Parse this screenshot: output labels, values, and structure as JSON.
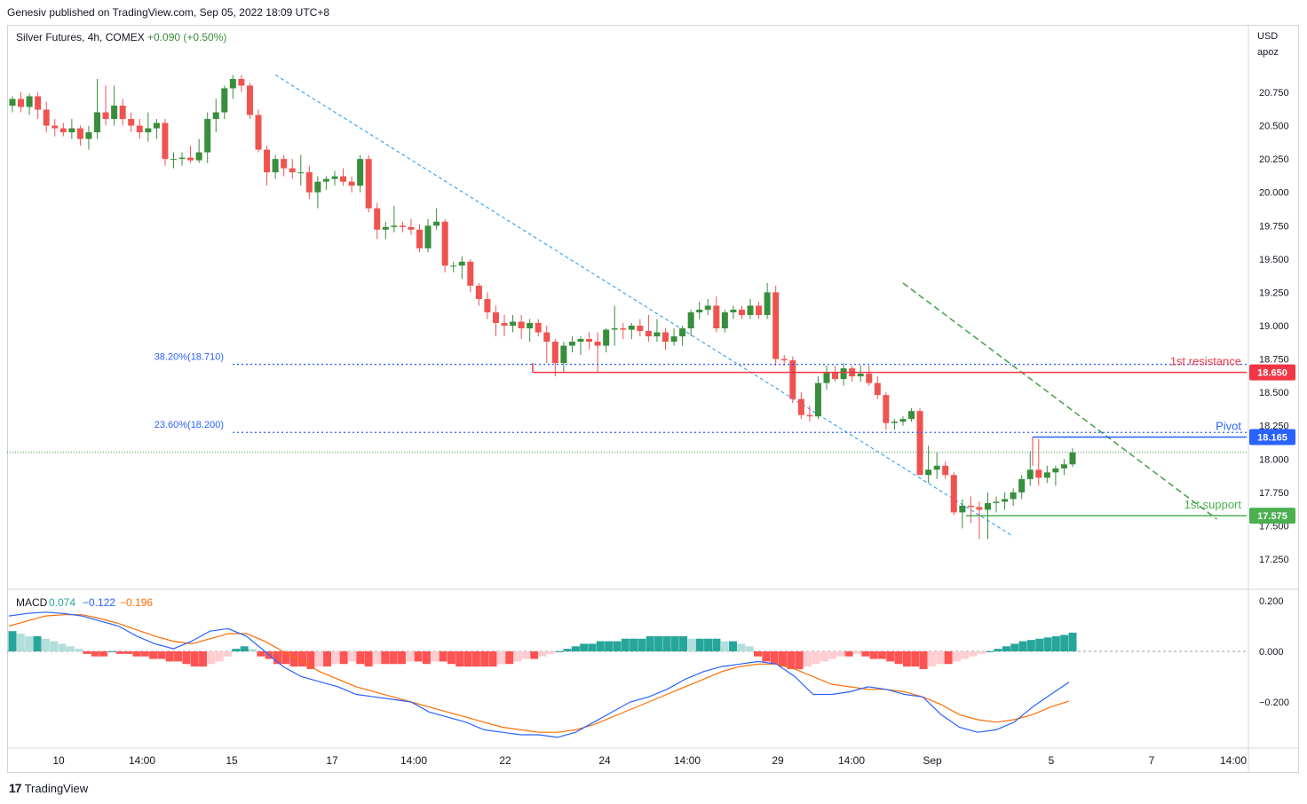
{
  "header": {
    "published": "Genesiv published on TradingView.com, Sep 05, 2022 18:09 UTC+8"
  },
  "legend": {
    "symbol": "Silver Futures, 4h, COMEX",
    "change": "+0.090 (+0.50%)"
  },
  "axis": {
    "currency": "USD",
    "unit": "apoz"
  },
  "footer": {
    "brand": "TradingView"
  },
  "colors": {
    "up": "#26a69a",
    "down": "#ef5350",
    "candle_up": "#388e3c",
    "candle_down": "#ef5350",
    "fib": "#2962ff",
    "resistance": "#f23645",
    "support": "#4caf50",
    "pivot": "#2962ff",
    "macd": "#2962ff",
    "signal": "#ff6d00"
  },
  "chart_data": [
    {
      "type": "candlestick",
      "title": "Silver Futures, 4h, COMEX",
      "ylim": [
        17.1,
        21.0
      ],
      "y_ticks": [
        "20.750",
        "20.500",
        "20.250",
        "20.000",
        "19.750",
        "19.500",
        "19.250",
        "19.000",
        "18.750",
        "18.500",
        "18.250",
        "18.000",
        "17.750",
        "17.500",
        "17.250"
      ],
      "x_ticks": [
        "10",
        "14:00",
        "15",
        "17",
        "14:00",
        "22",
        "24",
        "14:00",
        "29",
        "14:00",
        "Sep",
        "5",
        "7",
        "14:00"
      ],
      "candles_ohlc": [
        [
          20.65,
          20.72,
          20.6,
          20.7
        ],
        [
          20.7,
          20.75,
          20.6,
          20.64
        ],
        [
          20.64,
          20.74,
          20.58,
          20.72
        ],
        [
          20.72,
          20.75,
          20.55,
          20.62
        ],
        [
          20.62,
          20.68,
          20.45,
          20.5
        ],
        [
          20.5,
          20.55,
          20.42,
          20.48
        ],
        [
          20.48,
          20.52,
          20.42,
          20.45
        ],
        [
          20.45,
          20.55,
          20.4,
          20.48
        ],
        [
          20.48,
          20.5,
          20.35,
          20.4
        ],
        [
          20.4,
          20.5,
          20.32,
          20.45
        ],
        [
          20.45,
          20.85,
          20.4,
          20.6
        ],
        [
          20.6,
          20.8,
          20.5,
          20.55
        ],
        [
          20.55,
          20.8,
          20.5,
          20.65
        ],
        [
          20.65,
          20.7,
          20.5,
          20.55
        ],
        [
          20.55,
          20.6,
          20.45,
          20.5
        ],
        [
          20.5,
          20.55,
          20.4,
          20.45
        ],
        [
          20.45,
          20.6,
          20.38,
          20.48
        ],
        [
          20.48,
          20.55,
          20.4,
          20.52
        ],
        [
          20.52,
          20.55,
          20.2,
          20.25
        ],
        [
          20.25,
          20.3,
          20.18,
          20.25
        ],
        [
          20.25,
          20.3,
          20.2,
          20.26
        ],
        [
          20.26,
          20.35,
          20.22,
          20.24
        ],
        [
          20.24,
          20.4,
          20.22,
          20.3
        ],
        [
          20.3,
          20.6,
          20.22,
          20.55
        ],
        [
          20.55,
          20.7,
          20.45,
          20.6
        ],
        [
          20.6,
          20.8,
          20.55,
          20.78
        ],
        [
          20.78,
          20.88,
          20.7,
          20.85
        ],
        [
          20.85,
          20.88,
          20.75,
          20.8
        ],
        [
          20.8,
          20.82,
          20.55,
          20.58
        ],
        [
          20.58,
          20.62,
          20.3,
          20.32
        ],
        [
          20.32,
          20.35,
          20.05,
          20.15
        ],
        [
          20.15,
          20.28,
          20.1,
          20.25
        ],
        [
          20.25,
          20.28,
          20.12,
          20.18
        ],
        [
          20.18,
          20.25,
          20.1,
          20.15
        ],
        [
          20.15,
          20.28,
          20.05,
          20.15
        ],
        [
          20.15,
          20.2,
          19.95,
          20.0
        ],
        [
          20.0,
          20.12,
          19.88,
          20.08
        ],
        [
          20.08,
          20.12,
          20.02,
          20.1
        ],
        [
          20.1,
          20.16,
          20.05,
          20.12
        ],
        [
          20.12,
          20.18,
          20.05,
          20.08
        ],
        [
          20.08,
          20.12,
          20.0,
          20.05
        ],
        [
          20.05,
          20.28,
          20.0,
          20.25
        ],
        [
          20.25,
          20.28,
          19.85,
          19.88
        ],
        [
          19.88,
          19.92,
          19.65,
          19.72
        ],
        [
          19.72,
          19.78,
          19.65,
          19.74
        ],
        [
          19.74,
          19.9,
          19.7,
          19.75
        ],
        [
          19.75,
          19.78,
          19.7,
          19.74
        ],
        [
          19.74,
          19.8,
          19.68,
          19.72
        ],
        [
          19.72,
          19.76,
          19.55,
          19.58
        ],
        [
          19.58,
          19.8,
          19.55,
          19.75
        ],
        [
          19.75,
          19.88,
          19.72,
          19.78
        ],
        [
          19.78,
          19.8,
          19.4,
          19.45
        ],
        [
          19.45,
          19.48,
          19.4,
          19.45
        ],
        [
          19.45,
          19.52,
          19.35,
          19.48
        ],
        [
          19.48,
          19.5,
          19.25,
          19.3
        ],
        [
          19.3,
          19.32,
          19.15,
          19.2
        ],
        [
          19.2,
          19.25,
          19.05,
          19.1
        ],
        [
          19.1,
          19.15,
          18.92,
          19.02
        ],
        [
          19.02,
          19.08,
          18.92,
          19.0
        ],
        [
          19.0,
          19.08,
          18.95,
          19.03
        ],
        [
          19.03,
          19.08,
          18.9,
          18.98
        ],
        [
          18.98,
          19.05,
          18.88,
          19.02
        ],
        [
          19.02,
          19.05,
          18.92,
          18.95
        ],
        [
          18.95,
          19.0,
          18.72,
          18.88
        ],
        [
          18.88,
          18.9,
          18.62,
          18.72
        ],
        [
          18.72,
          18.88,
          18.65,
          18.85
        ],
        [
          18.85,
          18.92,
          18.8,
          18.88
        ],
        [
          18.88,
          18.92,
          18.78,
          18.9
        ],
        [
          18.9,
          18.95,
          18.82,
          18.88
        ],
        [
          18.88,
          18.95,
          18.65,
          18.85
        ],
        [
          18.85,
          18.98,
          18.8,
          18.97
        ],
        [
          18.97,
          19.15,
          18.85,
          18.98
        ],
        [
          18.98,
          19.02,
          18.9,
          18.97
        ],
        [
          18.97,
          19.02,
          18.9,
          19.0
        ],
        [
          19.0,
          19.05,
          18.92,
          18.96
        ],
        [
          18.96,
          19.08,
          18.88,
          18.92
        ],
        [
          18.92,
          19.05,
          18.88,
          18.95
        ],
        [
          18.95,
          18.98,
          18.82,
          18.88
        ],
        [
          18.88,
          18.98,
          18.85,
          18.92
        ],
        [
          18.92,
          19.0,
          18.85,
          18.98
        ],
        [
          18.98,
          19.12,
          18.92,
          19.1
        ],
        [
          19.1,
          19.18,
          19.05,
          19.12
        ],
        [
          19.12,
          19.2,
          19.08,
          19.15
        ],
        [
          19.15,
          19.22,
          18.95,
          18.98
        ],
        [
          18.98,
          19.12,
          18.95,
          19.1
        ],
        [
          19.1,
          19.15,
          19.05,
          19.12
        ],
        [
          19.12,
          19.15,
          19.05,
          19.08
        ],
        [
          19.08,
          19.2,
          19.05,
          19.15
        ],
        [
          19.15,
          19.18,
          19.05,
          19.08
        ],
        [
          19.08,
          19.32,
          19.05,
          19.25
        ],
        [
          19.25,
          19.3,
          18.7,
          18.75
        ],
        [
          18.75,
          18.78,
          18.7,
          18.74
        ],
        [
          18.74,
          18.77,
          18.42,
          18.45
        ],
        [
          18.45,
          18.5,
          18.3,
          18.33
        ],
        [
          18.33,
          18.4,
          18.28,
          18.32
        ],
        [
          18.32,
          18.62,
          18.3,
          18.57
        ],
        [
          18.57,
          18.7,
          18.52,
          18.65
        ],
        [
          18.65,
          18.7,
          18.58,
          18.6
        ],
        [
          18.6,
          18.72,
          18.55,
          18.68
        ],
        [
          18.68,
          18.7,
          18.58,
          18.62
        ],
        [
          18.62,
          18.7,
          18.58,
          18.64
        ],
        [
          18.64,
          18.7,
          18.55,
          18.57
        ],
        [
          18.57,
          18.62,
          18.45,
          18.48
        ],
        [
          18.48,
          18.5,
          18.22,
          18.27
        ],
        [
          18.27,
          18.3,
          18.22,
          18.28
        ],
        [
          18.28,
          18.32,
          18.25,
          18.3
        ],
        [
          18.3,
          18.38,
          18.28,
          18.36
        ],
        [
          18.36,
          18.38,
          17.9,
          17.88
        ],
        [
          17.88,
          18.1,
          17.82,
          17.92
        ],
        [
          17.92,
          18.05,
          17.85,
          17.95
        ],
        [
          17.95,
          17.98,
          17.85,
          17.88
        ],
        [
          17.88,
          17.9,
          17.58,
          17.6
        ],
        [
          17.6,
          17.7,
          17.48,
          17.65
        ],
        [
          17.65,
          17.72,
          17.52,
          17.64
        ],
        [
          17.64,
          17.68,
          17.4,
          17.62
        ],
        [
          17.62,
          17.75,
          17.4,
          17.67
        ],
        [
          17.67,
          17.72,
          17.6,
          17.68
        ],
        [
          17.68,
          17.75,
          17.62,
          17.7
        ],
        [
          17.7,
          17.78,
          17.65,
          17.75
        ],
        [
          17.75,
          17.88,
          17.7,
          17.85
        ],
        [
          17.85,
          18.06,
          17.8,
          17.92
        ],
        [
          17.92,
          18.15,
          17.8,
          17.86
        ],
        [
          17.86,
          17.95,
          17.82,
          17.9
        ],
        [
          17.9,
          17.95,
          17.8,
          17.93
        ],
        [
          17.93,
          18.0,
          17.88,
          17.96
        ],
        [
          17.96,
          18.08,
          17.94,
          18.05
        ]
      ],
      "fib_levels": [
        {
          "label": "38.20%(18.710)",
          "value": 18.71
        },
        {
          "label": "23.60%(18.200)",
          "value": 18.2
        }
      ],
      "levels": [
        {
          "name": "1st resistance",
          "value": 18.65,
          "tag": "18.650"
        },
        {
          "name": "Pivot",
          "value": 18.165,
          "tag": "18.165"
        },
        {
          "name": "1st support",
          "value": 17.575,
          "tag": "17.575"
        }
      ],
      "last_price": 18.05
    },
    {
      "type": "histogram+line",
      "title": "MACD",
      "values_text": {
        "hist": "0.074",
        "macd": "−0.122",
        "signal": "−0.196"
      },
      "ylim": [
        -0.38,
        0.25
      ],
      "y_ticks": [
        "0.200",
        "0.000",
        "−0.200"
      ],
      "histogram": [
        0.08,
        0.07,
        0.06,
        0.06,
        0.05,
        0.04,
        0.03,
        0.02,
        0.01,
        -0.01,
        -0.02,
        -0.02,
        0.0,
        -0.01,
        -0.01,
        -0.02,
        -0.02,
        -0.03,
        -0.03,
        -0.04,
        -0.04,
        -0.05,
        -0.06,
        -0.06,
        -0.05,
        -0.04,
        -0.02,
        0.01,
        0.02,
        0.01,
        -0.02,
        -0.03,
        -0.05,
        -0.05,
        -0.06,
        -0.06,
        -0.07,
        -0.06,
        -0.06,
        -0.05,
        -0.05,
        -0.04,
        -0.05,
        -0.06,
        -0.05,
        -0.05,
        -0.05,
        -0.05,
        -0.04,
        -0.04,
        -0.05,
        -0.04,
        -0.04,
        -0.05,
        -0.06,
        -0.06,
        -0.06,
        -0.06,
        -0.06,
        -0.05,
        -0.05,
        -0.04,
        -0.03,
        -0.03,
        -0.02,
        -0.01,
        0.0,
        0.01,
        0.02,
        0.03,
        0.03,
        0.04,
        0.04,
        0.04,
        0.05,
        0.05,
        0.05,
        0.06,
        0.06,
        0.06,
        0.06,
        0.06,
        0.05,
        0.05,
        0.05,
        0.05,
        0.04,
        0.04,
        0.03,
        0.02,
        -0.02,
        -0.04,
        -0.05,
        -0.06,
        -0.07,
        -0.07,
        -0.06,
        -0.05,
        -0.04,
        -0.03,
        -0.02,
        -0.02,
        -0.01,
        -0.02,
        -0.03,
        -0.03,
        -0.04,
        -0.05,
        -0.06,
        -0.06,
        -0.07,
        -0.06,
        -0.05,
        -0.05,
        -0.04,
        -0.03,
        -0.02,
        -0.01,
        0.0,
        0.01,
        0.02,
        0.03,
        0.04,
        0.045,
        0.05,
        0.055,
        0.06,
        0.065,
        0.074
      ],
      "macd": [
        0.14,
        0.15,
        0.155,
        0.15,
        0.14,
        0.12,
        0.1,
        0.06,
        0.03,
        0.01,
        0.04,
        0.08,
        0.09,
        0.06,
        0.0,
        -0.06,
        -0.1,
        -0.12,
        -0.14,
        -0.17,
        -0.18,
        -0.19,
        -0.2,
        -0.24,
        -0.26,
        -0.28,
        -0.31,
        -0.32,
        -0.33,
        -0.33,
        -0.34,
        -0.32,
        -0.28,
        -0.24,
        -0.2,
        -0.18,
        -0.15,
        -0.11,
        -0.08,
        -0.06,
        -0.05,
        -0.04,
        -0.05,
        -0.1,
        -0.17,
        -0.17,
        -0.16,
        -0.14,
        -0.15,
        -0.17,
        -0.18,
        -0.25,
        -0.3,
        -0.32,
        -0.31,
        -0.28,
        -0.22,
        -0.17,
        -0.122
      ],
      "signal": [
        0.1,
        0.12,
        0.14,
        0.145,
        0.145,
        0.13,
        0.11,
        0.085,
        0.06,
        0.04,
        0.03,
        0.05,
        0.07,
        0.07,
        0.04,
        0.0,
        -0.04,
        -0.08,
        -0.11,
        -0.14,
        -0.16,
        -0.18,
        -0.2,
        -0.22,
        -0.24,
        -0.26,
        -0.28,
        -0.3,
        -0.31,
        -0.32,
        -0.32,
        -0.31,
        -0.29,
        -0.26,
        -0.23,
        -0.2,
        -0.17,
        -0.14,
        -0.11,
        -0.08,
        -0.06,
        -0.05,
        -0.05,
        -0.07,
        -0.1,
        -0.13,
        -0.14,
        -0.15,
        -0.15,
        -0.16,
        -0.18,
        -0.21,
        -0.25,
        -0.27,
        -0.28,
        -0.27,
        -0.25,
        -0.22,
        -0.196
      ]
    }
  ]
}
